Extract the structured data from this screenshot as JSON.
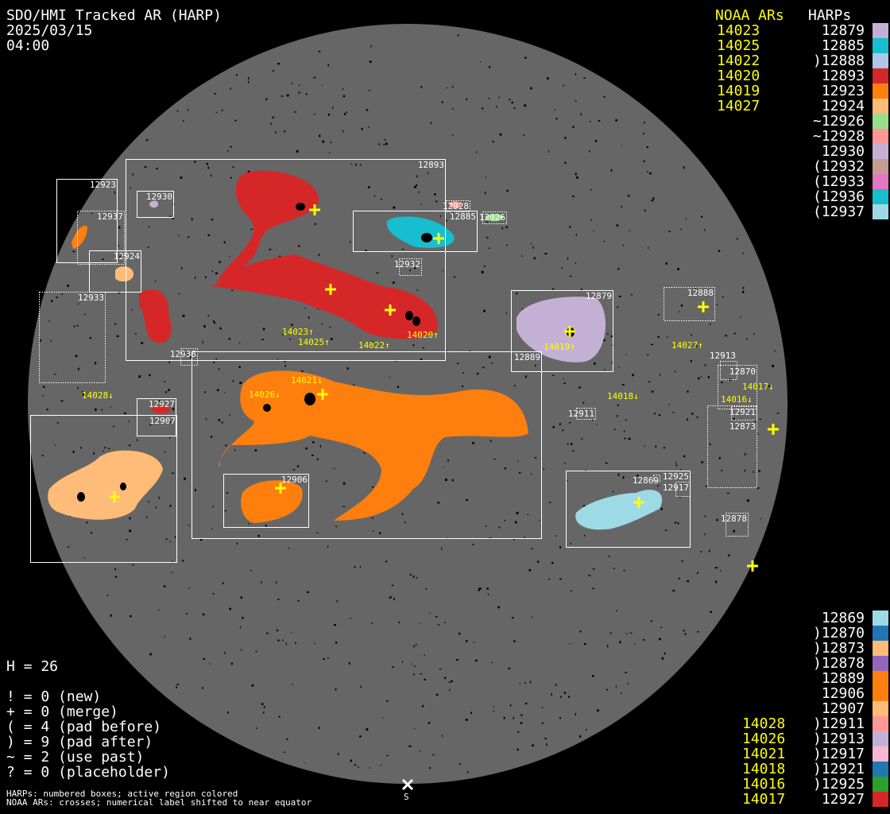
{
  "header": {
    "title": "SDO/HMI Tracked AR (HARP)",
    "date": "2025/03/15",
    "time": "04:00"
  },
  "legend_top": {
    "noaa_heading": "NOAA ARs",
    "harp_heading": "HARPs",
    "noaa": [
      "14023",
      "14025",
      "14022",
      "14020",
      "14019",
      "14027"
    ],
    "harps": [
      {
        "label": "12879",
        "color": "#c5b0d5"
      },
      {
        "label": "12885",
        "color": "#17becf"
      },
      {
        "label": ")12888",
        "color": "#aec7e8"
      },
      {
        "label": "12893",
        "color": "#d62728"
      },
      {
        "label": "12923",
        "color": "#ff7f0e"
      },
      {
        "label": "12924",
        "color": "#ffbb78"
      },
      {
        "label": "~12926",
        "color": "#98df8a"
      },
      {
        "label": "~12928",
        "color": "#ff9896"
      },
      {
        "label": "12930",
        "color": "#c5b0d5"
      },
      {
        "label": "(12932",
        "color": "#c49c94"
      },
      {
        "label": "(12933",
        "color": "#e377c2"
      },
      {
        "label": "(12936",
        "color": "#17becf"
      },
      {
        "label": "(12937",
        "color": "#9edae5"
      }
    ]
  },
  "legend_bottom": {
    "noaa": [
      "",
      "",
      "",
      "",
      "",
      "",
      "",
      "14028",
      "14026",
      "14021",
      "14018",
      "14016",
      "14017"
    ],
    "harps": [
      {
        "label": "12869",
        "color": "#9edae5"
      },
      {
        "label": ")12870",
        "color": "#1f77b4"
      },
      {
        "label": ")12873",
        "color": "#ffbb78"
      },
      {
        "label": ")12878",
        "color": "#9467bd"
      },
      {
        "label": "12889",
        "color": "#ff7f0e"
      },
      {
        "label": "12906",
        "color": "#ff7f0e"
      },
      {
        "label": "12907",
        "color": "#ffbb78"
      },
      {
        "label": ")12911",
        "color": "#ff9896"
      },
      {
        "label": ")12913",
        "color": "#c5b0d5"
      },
      {
        "label": ")12917",
        "color": "#f7b6d2"
      },
      {
        "label": ")12921",
        "color": "#1f77b4"
      },
      {
        "label": ")12925",
        "color": "#2ca02c"
      },
      {
        "label": "12927",
        "color": "#d62728"
      }
    ]
  },
  "stats": {
    "h": "H = 26",
    "lines": [
      "! = 0 (new)",
      "+ = 0 (merge)",
      "( = 4 (pad before)",
      ") = 9 (pad after)",
      "~ = 2 (use past)",
      "? = 0 (placeholder)"
    ]
  },
  "notes": [
    "HARPs: numbered boxes; active region colored",
    "NOAA ARs: crosses; numerical label shifted to near equator"
  ],
  "south_marker": {
    "label": "S"
  },
  "colors": {
    "disk": "#666666",
    "noaa": "#ffff00",
    "box": "#ffffff"
  },
  "harp_boxes": [
    {
      "label": "12893",
      "style": "solid"
    },
    {
      "label": "12923",
      "style": "solid"
    },
    {
      "label": "12930",
      "style": "solid"
    },
    {
      "label": "12924",
      "style": "solid"
    },
    {
      "label": "12885",
      "style": "solid"
    },
    {
      "label": "12879",
      "style": "solid"
    },
    {
      "label": "12889",
      "style": "solid"
    },
    {
      "label": "12906",
      "style": "solid"
    },
    {
      "label": "12925",
      "style": "solid"
    },
    {
      "label": "12927",
      "style": "solid"
    },
    {
      "label": "12907",
      "style": "solid"
    },
    {
      "label": "12937",
      "style": "dotted"
    },
    {
      "label": "12933",
      "style": "dotted"
    },
    {
      "label": "12936",
      "style": "dotted"
    },
    {
      "label": "12932",
      "style": "dotted"
    },
    {
      "label": "12928",
      "style": "dotted"
    },
    {
      "label": "12926",
      "style": "dotted"
    },
    {
      "label": "12888",
      "style": "dotted"
    },
    {
      "label": "12913",
      "style": "dotted"
    },
    {
      "label": "12870",
      "style": "dotted"
    },
    {
      "label": "12873",
      "style": "dotted"
    },
    {
      "label": "12921",
      "style": "dotted"
    },
    {
      "label": "12911",
      "style": "dotted"
    },
    {
      "label": "12869",
      "style": "dotted"
    },
    {
      "label": "12917",
      "style": "dotted"
    },
    {
      "label": "12878",
      "style": "dotted"
    }
  ],
  "noaa_labels": [
    "14023↑",
    "14025↑",
    "14022↑",
    "14020↑",
    "14019↑",
    "14027↑",
    "14021↓",
    "14026↓",
    "14028↓",
    "14018↓",
    "14017↓",
    "14016↓"
  ]
}
